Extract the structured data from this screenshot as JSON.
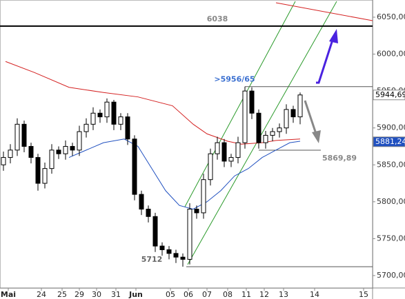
{
  "chart_data": {
    "type": "candlestick",
    "xlim": [
      0,
      108
    ],
    "ylim": [
      5683.2,
      6073.3
    ],
    "xticks": [
      {
        "value": 2.4,
        "label": "Mai"
      },
      {
        "value": 12,
        "label": "24"
      },
      {
        "value": 18,
        "label": "25"
      },
      {
        "value": 23,
        "label": "29"
      },
      {
        "value": 28,
        "label": "30"
      },
      {
        "value": 33.6,
        "label": "31"
      },
      {
        "value": 39.4,
        "label": "Jun"
      },
      {
        "value": 49.4,
        "label": "05"
      },
      {
        "value": 54.6,
        "label": "06"
      },
      {
        "value": 60,
        "label": "07"
      },
      {
        "value": 66,
        "label": "08"
      },
      {
        "value": 71.4,
        "label": "11"
      },
      {
        "value": 76.6,
        "label": "12"
      },
      {
        "value": 82.2,
        "label": "13"
      },
      {
        "value": 91.2,
        "label": "14"
      },
      {
        "value": 105.4,
        "label": "15"
      }
    ],
    "yticks": [
      {
        "value": 5700,
        "label": "5700,00"
      },
      {
        "value": 5750,
        "label": "5750,00"
      },
      {
        "value": 5800,
        "label": "5800,00"
      },
      {
        "value": 5850,
        "label": "5850,00"
      },
      {
        "value": 5900,
        "label": "5900,00"
      },
      {
        "value": 5950,
        "label": "5950,00"
      },
      {
        "value": 6000,
        "label": "6000,00"
      },
      {
        "value": 6050,
        "label": "6050,00"
      }
    ],
    "x": [
      1,
      3,
      5,
      7,
      9,
      11,
      13,
      15,
      17,
      19,
      21,
      23,
      25,
      27,
      29,
      31,
      33,
      35,
      37,
      39,
      41,
      43,
      45,
      47,
      49,
      51,
      53,
      55,
      57,
      59,
      61,
      63,
      65,
      67,
      69,
      71,
      73,
      75,
      77,
      79,
      81,
      83,
      85,
      87
    ],
    "open": [
      5850,
      5860,
      5870,
      5905,
      5875,
      5860,
      5825,
      5845,
      5870,
      5865,
      5875,
      5870,
      5895,
      5905,
      5920,
      5915,
      5935,
      5905,
      5915,
      5885,
      5810,
      5790,
      5780,
      5740,
      5735,
      5730,
      5725,
      5722,
      5790,
      5785,
      5830,
      5865,
      5880,
      5855,
      5860,
      5880,
      5950,
      5920,
      5880,
      5890,
      5895,
      5900,
      5925,
      5915
    ],
    "high": [
      5868,
      5878,
      5913,
      5910,
      5880,
      5865,
      5853,
      5878,
      5875,
      5883,
      5880,
      5903,
      5913,
      5928,
      5925,
      5940,
      5938,
      5920,
      5920,
      5890,
      5815,
      5795,
      5785,
      5745,
      5740,
      5735,
      5730,
      5798,
      5795,
      5838,
      5872,
      5888,
      5885,
      5865,
      5888,
      5956,
      5955,
      5925,
      5896,
      5900,
      5906,
      5932,
      5930,
      5948
    ],
    "low": [
      5842,
      5852,
      5862,
      5867,
      5852,
      5815,
      5818,
      5838,
      5858,
      5857,
      5862,
      5862,
      5887,
      5897,
      5907,
      5907,
      5897,
      5897,
      5877,
      5802,
      5782,
      5772,
      5732,
      5727,
      5722,
      5717,
      5712,
      5715,
      5777,
      5777,
      5822,
      5857,
      5847,
      5847,
      5852,
      5872,
      5912,
      5872,
      5872,
      5882,
      5887,
      5892,
      5907,
      5905
    ],
    "close": [
      5860,
      5870,
      5905,
      5875,
      5860,
      5825,
      5845,
      5870,
      5865,
      5875,
      5870,
      5895,
      5905,
      5920,
      5915,
      5935,
      5905,
      5915,
      5885,
      5810,
      5790,
      5780,
      5740,
      5735,
      5730,
      5725,
      5722,
      5790,
      5785,
      5830,
      5865,
      5880,
      5855,
      5860,
      5880,
      5950,
      5920,
      5880,
      5890,
      5895,
      5900,
      5925,
      5915,
      5944.69
    ],
    "series": [
      {
        "color": "#d42020",
        "x": [
          1.6,
          10,
          20,
          30,
          40,
          50,
          56,
          60,
          66,
          70,
          76,
          80,
          87
        ],
        "values": [
          5990,
          5975,
          5955,
          5948,
          5942,
          5930,
          5905,
          5892,
          5882,
          5878,
          5880,
          5883,
          5885
        ]
      },
      {
        "color": "#2050c0",
        "x": [
          20,
          24,
          30,
          36,
          40,
          44,
          48,
          52,
          56,
          60,
          64,
          68,
          72,
          76,
          80,
          84,
          87
        ],
        "values": [
          5860,
          5868,
          5880,
          5885,
          5875,
          5845,
          5815,
          5795,
          5790,
          5800,
          5815,
          5835,
          5845,
          5860,
          5870,
          5880,
          5882
        ]
      }
    ],
    "levels": [
      {
        "value": 6038,
        "from": 0,
        "to": 108,
        "color": "#000000"
      },
      {
        "value": 5956,
        "from": 71,
        "to": 108,
        "color": "#555555"
      },
      {
        "value": 5712,
        "from": 54,
        "to": 108,
        "color": "#555555"
      },
      {
        "value": 5869.89,
        "from": 75,
        "to": 93,
        "color": "#555555"
      }
    ],
    "annotations": [
      {
        "text": "6038",
        "value": 6038,
        "color": "#888888"
      },
      {
        "text": ">5956/65",
        "value": 5956,
        "color": "#3a6fd0"
      },
      {
        "text": "5712",
        "value": 5712,
        "color": "#666666"
      },
      {
        "text": "5869,89",
        "value": 5869.89,
        "color": "#888888"
      }
    ],
    "price_tags": [
      {
        "value": 5944.69,
        "label": "5944,69",
        "color": "#ffffff"
      },
      {
        "value": 5881.24,
        "label": "5881,24",
        "color": "#2050c0"
      }
    ]
  }
}
